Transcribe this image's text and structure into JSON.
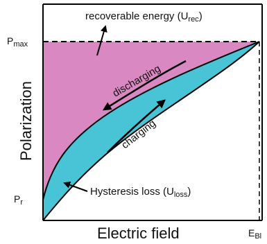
{
  "diagram": {
    "y_axis_label": "Polarization",
    "x_axis_label": "Electric field",
    "p_max": {
      "main": "P",
      "sub": "max"
    },
    "p_r": {
      "main": "P",
      "sub": "r"
    },
    "e_b": {
      "main": "E",
      "sub": "Bl"
    },
    "recoverable_energy": {
      "text": "recoverable energy (U",
      "sub": "rec",
      "close": ")"
    },
    "hysteresis_loss": {
      "text": "Hysteresis loss (U",
      "sub": "loss",
      "close": ")"
    },
    "discharging_label": "discharging",
    "charging_label": "charging",
    "colors": {
      "recoverable_region": "#d988c2",
      "loss_region": "#49c3d6",
      "axis": "#000000",
      "dashed": "#000000"
    }
  }
}
